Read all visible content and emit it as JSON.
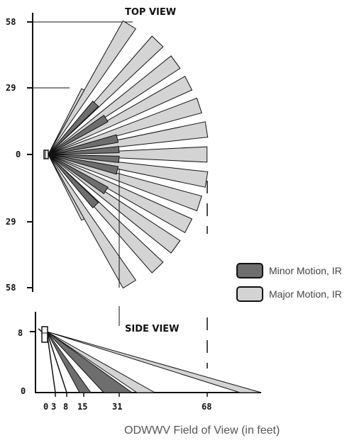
{
  "titles": {
    "top_view": "TOP VIEW",
    "side_view": "SIDE VIEW"
  },
  "top_axis_labels": [
    "58",
    "29",
    "0",
    "29",
    "58"
  ],
  "side_y_labels": [
    "8",
    "0"
  ],
  "side_x_labels": [
    "0",
    "3",
    "8",
    "15",
    "31",
    "68"
  ],
  "legend": {
    "minor": "Minor Motion, IR",
    "major": "Major Motion, IR"
  },
  "caption": "ODWWV Field of View (in feet)",
  "colors": {
    "minor": "#6e6e6e",
    "major": "#d4d4d4",
    "stroke": "#111111"
  }
}
